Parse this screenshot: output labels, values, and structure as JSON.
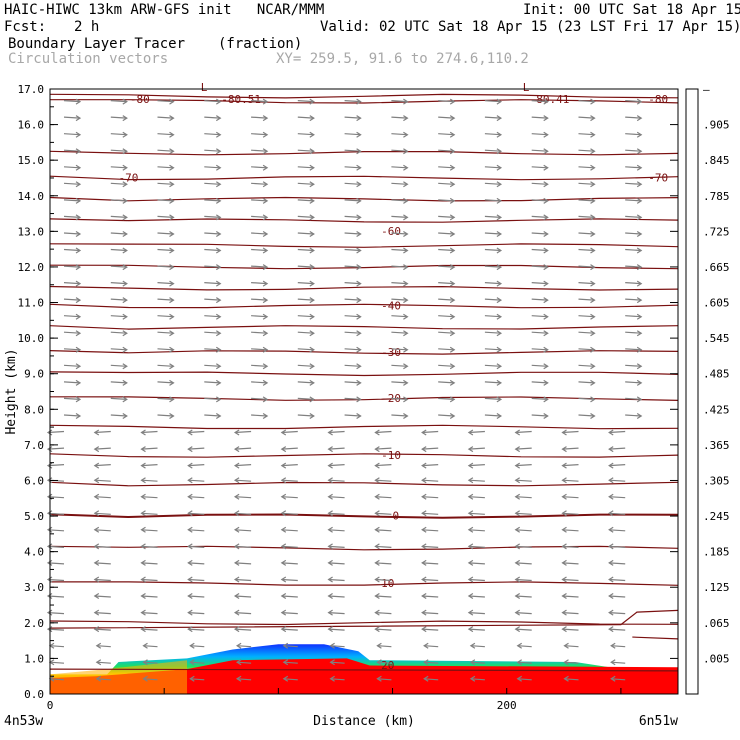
{
  "header": {
    "title_left": "HAIC-HIWC 13km ARW-GFS init   NCAR/MMM",
    "init": "Init: 00 UTC Sat 18 Apr 15",
    "fcst_label": "Fcst:",
    "fcst_value": "2 h",
    "valid": "Valid: 02 UTC Sat 18 Apr 15 (23 LST Fri 17 Apr 15)",
    "field_name": "Boundary Layer Tracer",
    "field_units": "(fraction)",
    "vectors_label": "Circulation vectors",
    "xy_label": "XY= 259.5, 91.6 to 274.6,110.2"
  },
  "chart_data": {
    "type": "heatmap",
    "ylabel": "Height (km)",
    "xlabel": "Distance (km)",
    "x_left_label": "4n53w",
    "x_right_label": "6n51w",
    "xlim": [
      0,
      275
    ],
    "ylim": [
      0,
      17
    ],
    "x_ticks": [
      0,
      200
    ],
    "y_ticks": [
      "0.0",
      "1.0",
      "2.0",
      "3.0",
      "4.0",
      "5.0",
      "6.0",
      "7.0",
      "8.0",
      "9.0",
      "10.0",
      "11.0",
      "12.0",
      "13.0",
      "14.0",
      "15.0",
      "16.0",
      "17.0"
    ],
    "colorbar_labels": [
      ".005",
      ".065",
      ".125",
      ".185",
      ".245",
      ".305",
      ".365",
      ".425",
      ".485",
      ".545",
      ".605",
      ".665",
      ".725",
      ".785",
      ".845",
      ".905",
      "–"
    ],
    "colorbar_colors": [
      "#ffffff",
      "#0020ff",
      "#0060ff",
      "#00a0ff",
      "#00d0d0",
      "#00e0a0",
      "#20e060",
      "#60e020",
      "#a0e000",
      "#d0e000",
      "#ffe000",
      "#ffc000",
      "#ffa000",
      "#ff8000",
      "#ff5000",
      "#ff2000",
      "#ff0000"
    ],
    "contour_color": "#7a1010",
    "vector_color": "#808080",
    "tracer_regions": [
      {
        "level": "low",
        "color": "#1030ff",
        "x": [
          25,
          275
        ],
        "top_km": [
          0.55,
          1.4
        ]
      },
      {
        "level": "high",
        "color": "#ff0000",
        "x": [
          40,
          275
        ],
        "top_km": [
          0.6,
          1.0
        ]
      }
    ],
    "temperature_contours": [
      {
        "label": "-80",
        "km": 16.7
      },
      {
        "label": "-80.51",
        "km": 16.8
      },
      {
        "label": "-80.41",
        "km": 16.8
      },
      {
        "label": "-70",
        "km": 14.5
      },
      {
        "label": "-60",
        "km": 13.0
      },
      {
        "label": "-40",
        "km": 10.9
      },
      {
        "label": "-30",
        "km": 9.6
      },
      {
        "label": "-20",
        "km": 8.3
      },
      {
        "label": "-10",
        "km": 6.7
      },
      {
        "label": "0",
        "km": 5.0
      },
      {
        "label": "10",
        "km": 3.1
      },
      {
        "label": "20",
        "km": 0.8
      }
    ],
    "min_markers": [
      "L",
      "L"
    ]
  }
}
